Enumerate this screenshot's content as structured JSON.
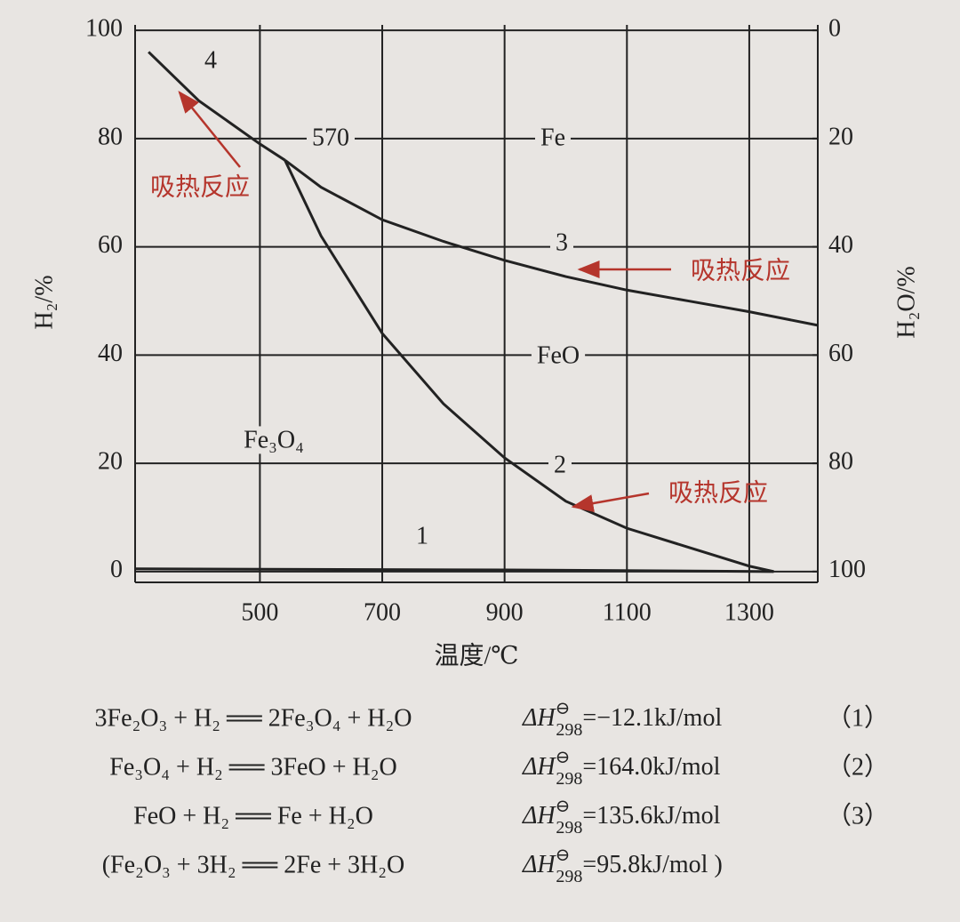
{
  "chart_data": {
    "type": "line",
    "x_label": "温度/℃",
    "y_label": "H₂/%",
    "y2_label": "H₂O/%",
    "xlim": [
      296,
      1412
    ],
    "xticks": [
      500,
      700,
      900,
      1100,
      1300
    ],
    "ylim": [
      -2,
      101
    ],
    "yticks": [
      0,
      20,
      40,
      60,
      80,
      100
    ],
    "y2lim": [
      102,
      -1
    ],
    "y2ticks": [
      0,
      20,
      40,
      60,
      80,
      100
    ],
    "grid": true,
    "series": [
      {
        "name": "1",
        "color": "#222222",
        "x": [
          296,
          900,
          1340
        ],
        "values": [
          0.5,
          0.3,
          0
        ]
      },
      {
        "name": "2",
        "color": "#222222",
        "x": [
          541,
          600,
          700,
          800,
          900,
          1000,
          1100,
          1200,
          1300,
          1340
        ],
        "values": [
          76,
          62,
          44,
          31,
          21,
          13,
          8,
          4.5,
          1,
          0
        ]
      },
      {
        "name": "3",
        "color": "#222222",
        "x": [
          541,
          600,
          700,
          800,
          900,
          1000,
          1100,
          1200,
          1300,
          1412
        ],
        "values": [
          76,
          71,
          65,
          61,
          57.5,
          54.5,
          52,
          50,
          48,
          45.5
        ]
      },
      {
        "name": "4",
        "color": "#222222",
        "x": [
          318,
          400,
          500,
          541
        ],
        "values": [
          96,
          87,
          79,
          76
        ]
      }
    ],
    "annotations": [
      "570",
      "Fe",
      "FeO",
      "Fe₃O₄",
      "吸热反应",
      "吸热反应",
      "吸热反应"
    ]
  },
  "equations": [
    {
      "reaction": "3Fe₂O₃ + H₂ ══ 2Fe₃O₄ + H₂O",
      "symbol": "ΔH",
      "superscript": "⊖",
      "subscript": "298",
      "value": "=−12.1kJ/mol",
      "number": "（1）"
    },
    {
      "reaction": "Fe₃O₄ + H₂ ══ 3FeO + H₂O",
      "symbol": "ΔH",
      "superscript": "⊖",
      "subscript": "298",
      "value": "=164.0kJ/mol",
      "number": "（2）"
    },
    {
      "reaction": "FeO + H₂ ══ Fe + H₂O",
      "symbol": "ΔH",
      "superscript": "⊖",
      "subscript": "298",
      "value": "=135.6kJ/mol",
      "number": "（3）"
    },
    {
      "reaction": "(Fe₂O₃ + 3H₂ ══ 2Fe + 3H₂O",
      "symbol": "ΔH",
      "superscript": "⊖",
      "subscript": "298",
      "value": "=95.8kJ/mol )",
      "number": ""
    }
  ]
}
